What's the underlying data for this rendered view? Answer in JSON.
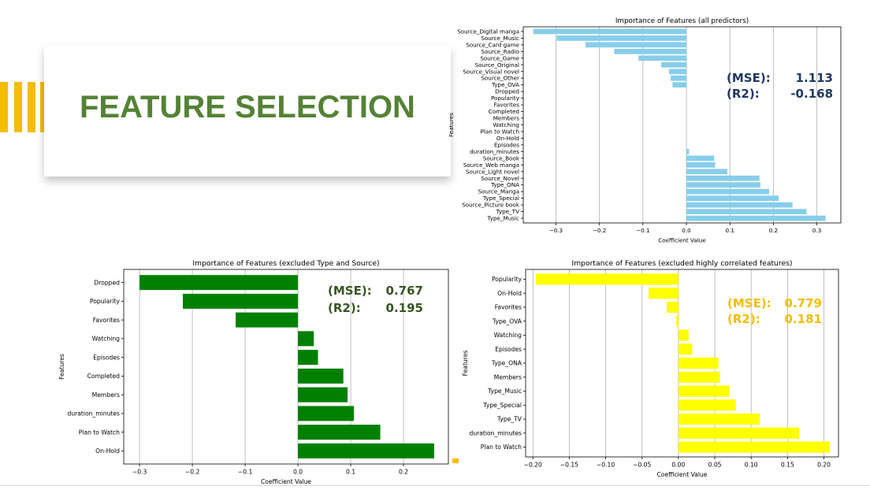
{
  "slide": {
    "title": "FEATURE SELECTION",
    "accent_color": "#f5bd00",
    "title_color": "#548235"
  },
  "chart_data": [
    {
      "type": "bar",
      "orientation": "horizontal",
      "title": "Importance of Features (all predictors)",
      "xlabel": "Coefficient Value",
      "ylabel": "Features",
      "categories": [
        "Source_Digital manga",
        "Source_Music",
        "Source_Card game",
        "Source_Radio",
        "Source_Game",
        "Source_Original",
        "Source_Visual novel",
        "Source_Other",
        "Type_OVA",
        "Dropped",
        "Popularity",
        "Favorites",
        "Completed",
        "Members",
        "Watching",
        "Plan to Watch",
        "On-Hold",
        "Episodes",
        "duration_minutes",
        "Source_Book",
        "Source_Web manga",
        "Source_Light novel",
        "Source_Novel",
        "Type_ONA",
        "Source_Manga",
        "Type_Special",
        "Source_Picture book",
        "Type_TV",
        "Type_Music"
      ],
      "values": [
        -0.352,
        -0.298,
        -0.232,
        -0.166,
        -0.11,
        -0.058,
        -0.04,
        -0.036,
        -0.032,
        0,
        0,
        0,
        0,
        0,
        0,
        0,
        0,
        0,
        0.006,
        0.064,
        0.066,
        0.094,
        0.168,
        0.17,
        0.19,
        0.212,
        0.244,
        0.276,
        0.32
      ],
      "xlim": [
        -0.375,
        0.355
      ],
      "xticks": [
        -0.3,
        -0.2,
        -0.1,
        0.0,
        0.1,
        0.2,
        0.3
      ],
      "xtick_labels": [
        "−0.3",
        "−0.2",
        "−0.1",
        "0.0",
        "0.1",
        "0.2",
        "0.3"
      ],
      "grid": "x",
      "color": "#87ceeb",
      "annotations": [
        {
          "label": "(MSE):",
          "value": "1.113"
        },
        {
          "label": "(R2):",
          "value": "-0.168"
        }
      ],
      "annotation_color": "#1f3864"
    },
    {
      "type": "bar",
      "orientation": "horizontal",
      "title": "Importance of Features (excluded Type and Source)",
      "xlabel": "Coefficient Value",
      "ylabel": "Features",
      "categories": [
        "Dropped",
        "Popularity",
        "Favorites",
        "Watching",
        "Episodes",
        "Completed",
        "Members",
        "duration_minutes",
        "Plan to Watch",
        "On-Hold"
      ],
      "values": [
        -0.3,
        -0.218,
        -0.118,
        0.03,
        0.038,
        0.086,
        0.094,
        0.106,
        0.156,
        0.258
      ],
      "xlim": [
        -0.33,
        0.285
      ],
      "xticks": [
        -0.3,
        -0.2,
        -0.1,
        0.0,
        0.1,
        0.2
      ],
      "xtick_labels": [
        "−0.3",
        "−0.2",
        "−0.1",
        "0.0",
        "0.1",
        "0.2"
      ],
      "grid": "x",
      "color": "#008000",
      "annotations": [
        {
          "label": "(MSE):",
          "value": "0.767"
        },
        {
          "label": "(R2):",
          "value": "0.195"
        }
      ],
      "annotation_color": "#375623"
    },
    {
      "type": "bar",
      "orientation": "horizontal",
      "title": "Importance of Features (excluded highly correlated features)",
      "xlabel": "Coefficient Value",
      "ylabel": "Features",
      "categories": [
        "Popularity",
        "On-Hold",
        "Favorites",
        "Type_OVA",
        "Watching",
        "Episodes",
        "Type_ONA",
        "Members",
        "Type_Music",
        "Type_Special",
        "Type_TV",
        "duration_minutes",
        "Plan to Watch"
      ],
      "values": [
        -0.196,
        -0.041,
        -0.016,
        -0.003,
        0.014,
        0.019,
        0.055,
        0.057,
        0.07,
        0.079,
        0.112,
        0.166,
        0.208
      ],
      "xlim": [
        -0.21,
        0.22
      ],
      "xticks": [
        -0.2,
        -0.15,
        -0.1,
        -0.05,
        0.0,
        0.05,
        0.1,
        0.15,
        0.2
      ],
      "xtick_labels": [
        "−0.20",
        "−0.15",
        "−0.10",
        "−0.05",
        "0.00",
        "0.05",
        "0.10",
        "0.15",
        "0.20"
      ],
      "grid": "x",
      "color": "#ffff00",
      "annotations": [
        {
          "label": "(MSE):",
          "value": "0.779"
        },
        {
          "label": "(R2):",
          "value": "0.181"
        }
      ],
      "annotation_color": "#f5bd00"
    }
  ]
}
